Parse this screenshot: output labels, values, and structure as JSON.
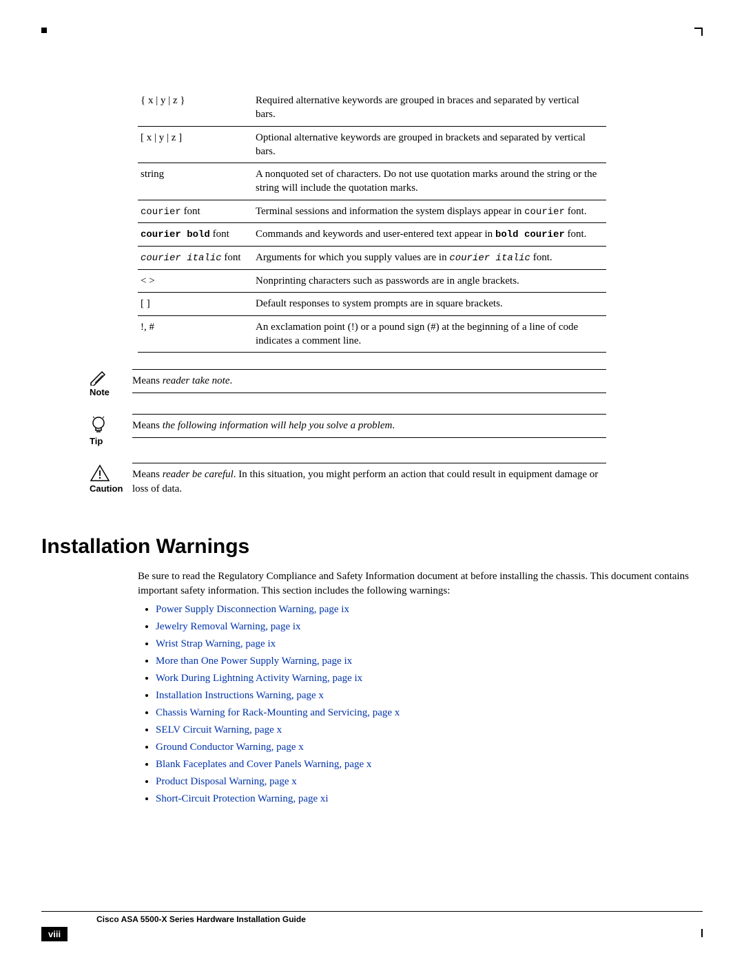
{
  "conventions_table": {
    "rows": [
      {
        "syntax": "{ x | y | z }",
        "syntax_style": "plain",
        "desc_parts": [
          {
            "t": "Required alternative keywords are grouped in braces and separated by vertical bars.",
            "s": "plain"
          }
        ]
      },
      {
        "syntax": "[ x | y | z ]",
        "syntax_style": "plain",
        "desc_parts": [
          {
            "t": "Optional alternative keywords are grouped in brackets and separated by vertical bars.",
            "s": "plain"
          }
        ]
      },
      {
        "syntax": "string",
        "syntax_style": "plain",
        "desc_parts": [
          {
            "t": "A nonquoted set of characters. Do not use quotation marks around the string or the string will include the quotation marks.",
            "s": "plain"
          }
        ]
      },
      {
        "syntax_parts": [
          {
            "t": "courier",
            "s": "mono"
          },
          {
            "t": " font",
            "s": "plain"
          }
        ],
        "desc_parts": [
          {
            "t": "Terminal sessions and information the system displays appear in ",
            "s": "plain"
          },
          {
            "t": "courier",
            "s": "mono"
          },
          {
            "t": " font.",
            "s": "plain"
          }
        ]
      },
      {
        "syntax_parts": [
          {
            "t": "courier bold",
            "s": "mono-bold"
          },
          {
            "t": " font",
            "s": "plain"
          }
        ],
        "desc_parts": [
          {
            "t": "Commands and keywords and user-entered text appear in ",
            "s": "plain"
          },
          {
            "t": "bold courier",
            "s": "mono-bold"
          },
          {
            "t": " font.",
            "s": "plain"
          }
        ]
      },
      {
        "syntax_parts": [
          {
            "t": "courier italic",
            "s": "mono-italic"
          },
          {
            "t": " font",
            "s": "plain"
          }
        ],
        "desc_parts": [
          {
            "t": "Arguments for which you supply values are in ",
            "s": "plain"
          },
          {
            "t": "courier italic",
            "s": "mono-italic"
          },
          {
            "t": " font.",
            "s": "plain"
          }
        ]
      },
      {
        "syntax": "<   >",
        "syntax_style": "plain",
        "desc_parts": [
          {
            "t": "Nonprinting characters such as passwords are in angle brackets.",
            "s": "plain"
          }
        ]
      },
      {
        "syntax": "[   ]",
        "syntax_style": "plain",
        "desc_parts": [
          {
            "t": "Default responses to system prompts are in square brackets.",
            "s": "plain"
          }
        ]
      },
      {
        "syntax": "!, #",
        "syntax_style": "plain",
        "desc_parts": [
          {
            "t": "An exclamation point (!) or a pound sign (#) at the beginning of a line of code indicates a comment line.",
            "s": "plain"
          }
        ]
      }
    ]
  },
  "note": {
    "label": "Note",
    "text_parts": [
      {
        "t": "Means ",
        "s": "plain"
      },
      {
        "t": "reader take note",
        "s": "italic"
      },
      {
        "t": ".",
        "s": "plain"
      }
    ]
  },
  "tip": {
    "label": "Tip",
    "text_parts": [
      {
        "t": "Means ",
        "s": "plain"
      },
      {
        "t": "the following information will help you solve a problem",
        "s": "italic"
      },
      {
        "t": ".",
        "s": "plain"
      }
    ]
  },
  "caution": {
    "label": "Caution",
    "text_parts": [
      {
        "t": "Means ",
        "s": "plain"
      },
      {
        "t": "reader be careful",
        "s": "italic"
      },
      {
        "t": ". In this situation, you might perform an action that could result in equipment damage or loss of data.",
        "s": "plain"
      }
    ]
  },
  "section_heading": "Installation Warnings",
  "intro_para": "Be sure to read the Regulatory Compliance and Safety Information document at before installing the chassis. This document contains important safety information. This section includes the following warnings:",
  "links": [
    "Power Supply Disconnection Warning, page ix",
    "Jewelry Removal Warning, page ix",
    "Wrist Strap Warning, page ix",
    "More than One Power Supply Warning, page ix",
    "Work During Lightning Activity Warning, page ix",
    "Installation Instructions Warning, page x",
    "Chassis Warning for Rack-Mounting and Servicing, page x",
    "SELV Circuit Warning, page x",
    "Ground Conductor Warning, page x",
    "Blank Faceplates and Cover Panels Warning, page x",
    "Product Disposal Warning, page x",
    "Short-Circuit Protection Warning, page xi"
  ],
  "footer": {
    "doc_title": "Cisco ASA 5500-X Series Hardware Installation Guide",
    "page_number": "viii"
  },
  "colors": {
    "link": "#0033aa",
    "text": "#000000",
    "bg": "#ffffff"
  }
}
